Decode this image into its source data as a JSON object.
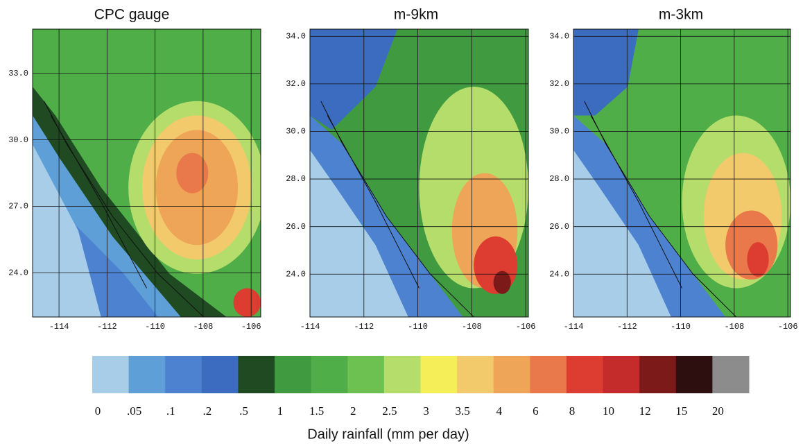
{
  "chart_data": [
    {
      "type": "map",
      "title": "CPC gauge",
      "xlim": [
        -115.1,
        -105.6
      ],
      "ylim": [
        22,
        35
      ],
      "xticks": [
        -114,
        -112,
        -110,
        -108,
        -106
      ],
      "yticks": [
        {
          "value": 33,
          "label": "33.0"
        },
        {
          "value": 30,
          "label": "30.0"
        },
        {
          "value": 27,
          "label": "27.0"
        },
        {
          "value": 24,
          "label": "24.0"
        }
      ],
      "grid": true
    },
    {
      "type": "map",
      "title": "m-9km",
      "xlim": [
        -114,
        -105.9
      ],
      "ylim": [
        22.2,
        34.3
      ],
      "xticks": [
        -114,
        -112,
        -110,
        -108,
        -106
      ],
      "yticks": [
        {
          "value": 34,
          "label": "34.0"
        },
        {
          "value": 32,
          "label": "32.0"
        },
        {
          "value": 30,
          "label": "30.0"
        },
        {
          "value": 28,
          "label": "28.0"
        },
        {
          "value": 26,
          "label": "26.0"
        },
        {
          "value": 24,
          "label": "24.0"
        }
      ],
      "grid": true
    },
    {
      "type": "map",
      "title": "m-3km",
      "xlim": [
        -114,
        -105.9
      ],
      "ylim": [
        22.2,
        34.3
      ],
      "xticks": [
        -114,
        -112,
        -110,
        -108,
        -106
      ],
      "yticks": [
        {
          "value": 34,
          "label": "34.0"
        },
        {
          "value": 32,
          "label": "32.0"
        },
        {
          "value": 30,
          "label": "30.0"
        },
        {
          "value": 28,
          "label": "28.0"
        },
        {
          "value": 26,
          "label": "26.0"
        },
        {
          "value": 24,
          "label": "24.0"
        }
      ],
      "grid": true
    }
  ],
  "colorbar": {
    "label": "Daily rainfall (mm per day)",
    "ticks": [
      0,
      {
        "value": 0.05,
        "label": ".05"
      },
      {
        "value": 0.1,
        "label": ".1"
      },
      {
        "value": 0.2,
        "label": ".2"
      },
      {
        "value": 0.5,
        "label": ".5"
      },
      1,
      1.5,
      2,
      2.5,
      3,
      3.5,
      4,
      6,
      8,
      10,
      12,
      15,
      20
    ],
    "colors": [
      "#a8cde9",
      "#5e9fd8",
      "#4c82cf",
      "#3c6cc0",
      "#1f4a22",
      "#3f9a40",
      "#4fae48",
      "#6cc150",
      "#b5dd6b",
      "#f6ee58",
      "#f2c96b",
      "#eea557",
      "#e9784b",
      "#dc3d30",
      "#c42b2b",
      "#7c1a1a",
      "#2e0f10",
      "#8c8c8c"
    ]
  }
}
